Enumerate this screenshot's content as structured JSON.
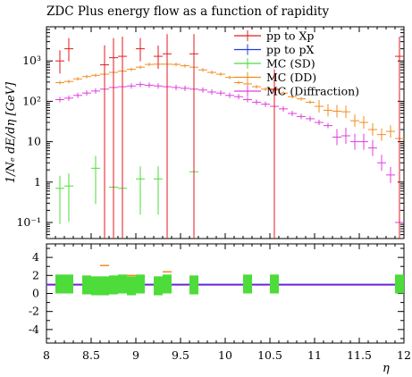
{
  "chart_data": {
    "type": "scatter",
    "title": "ZDC Plus energy flow as a function of rapidity",
    "xlabel": "η",
    "ylabel": "1/Nₑ dE/dη [GeV]",
    "xlim": [
      8,
      12
    ],
    "ylim": [
      0.04,
      7000
    ],
    "yscale": "log",
    "ratio_ylim": [
      -5.5,
      5.5
    ],
    "x_ticks": [
      "8",
      "8.5",
      "9",
      "9.5",
      "10",
      "10.5",
      "11",
      "11.5",
      "12"
    ],
    "y_ticks": [
      "10⁻¹",
      "1",
      "10",
      "10²",
      "10³"
    ],
    "ratio_ticks": [
      "4",
      "2",
      "0",
      "-2",
      "-4"
    ],
    "legend_position": "top-right",
    "colors": {
      "pp to Xp": "#e41a1c",
      "pp to pX": "#1f3fd9",
      "MC (SD)": "#4ddc3a",
      "MC (DD)": "#f28c1e",
      "MC (Diffraction)": "#e03ce0"
    },
    "series": [
      {
        "name": "pp to Xp",
        "x": [
          8.15,
          8.25,
          8.65,
          8.75,
          8.85,
          9.05,
          9.25,
          9.35,
          9.65,
          10.55,
          11.95
        ],
        "y": [
          1000,
          2000,
          800,
          1200,
          1300,
          2000,
          1300,
          1500,
          1500,
          200,
          1300
        ]
      },
      {
        "name": "pp to pX",
        "x": [],
        "y": []
      },
      {
        "name": "MC (SD)",
        "x": [
          8.15,
          8.25,
          8.55,
          8.75,
          8.85,
          9.05,
          9.25,
          9.65
        ],
        "y": [
          0.7,
          0.8,
          2.2,
          0.75,
          0.7,
          1.2,
          1.2,
          1.8
        ]
      },
      {
        "name": "MC (DD)",
        "x": [
          8.15,
          8.25,
          8.35,
          8.45,
          8.55,
          8.65,
          8.75,
          8.85,
          8.95,
          9.05,
          9.15,
          9.25,
          9.35,
          9.45,
          9.55,
          9.65,
          9.75,
          9.85,
          9.95,
          10.05,
          10.15,
          10.25,
          10.35,
          10.45,
          10.55,
          10.65,
          10.75,
          10.85,
          10.95,
          11.05,
          11.15,
          11.25,
          11.35,
          11.45,
          11.55,
          11.65,
          11.75,
          11.85,
          11.95
        ],
        "y": [
          290,
          310,
          360,
          410,
          440,
          470,
          520,
          560,
          620,
          700,
          820,
          830,
          830,
          820,
          760,
          700,
          600,
          520,
          470,
          390,
          290,
          270,
          230,
          200,
          190,
          160,
          130,
          115,
          95,
          75,
          60,
          57,
          55,
          33,
          30,
          20,
          15,
          18,
          12
        ]
      },
      {
        "name": "MC (Diffraction)",
        "x": [
          8.15,
          8.25,
          8.35,
          8.45,
          8.55,
          8.65,
          8.75,
          8.85,
          8.95,
          9.05,
          9.15,
          9.25,
          9.35,
          9.45,
          9.55,
          9.65,
          9.75,
          9.85,
          9.95,
          10.05,
          10.15,
          10.25,
          10.35,
          10.45,
          10.55,
          10.65,
          10.75,
          10.85,
          10.95,
          11.05,
          11.15,
          11.25,
          11.35,
          11.45,
          11.55,
          11.65,
          11.75,
          11.85,
          11.95
        ],
        "y": [
          110,
          120,
          140,
          160,
          180,
          200,
          220,
          230,
          240,
          260,
          250,
          240,
          230,
          220,
          210,
          200,
          190,
          170,
          160,
          140,
          130,
          110,
          95,
          85,
          75,
          65,
          50,
          42,
          37,
          30,
          25,
          13,
          14,
          10,
          10,
          7,
          3,
          1.5,
          0.1
        ]
      }
    ],
    "ratio_series": [
      {
        "name": "MC (SD)",
        "x": [
          8.15,
          8.25,
          8.45,
          8.55,
          8.65,
          8.75,
          8.85,
          8.95,
          9.05,
          9.25,
          9.35,
          9.65,
          10.25,
          10.55,
          11.95
        ],
        "y": [
          0.9,
          0.9,
          0.8,
          0.7,
          0.7,
          0.8,
          0.9,
          0.7,
          0.9,
          0.7,
          0.9,
          0.8,
          0.9,
          0.9,
          0.9
        ]
      },
      {
        "name": "MC (DD)",
        "x": [
          8.65,
          8.95,
          9.35
        ],
        "y": [
          3.1,
          2.0,
          2.4
        ]
      }
    ]
  }
}
